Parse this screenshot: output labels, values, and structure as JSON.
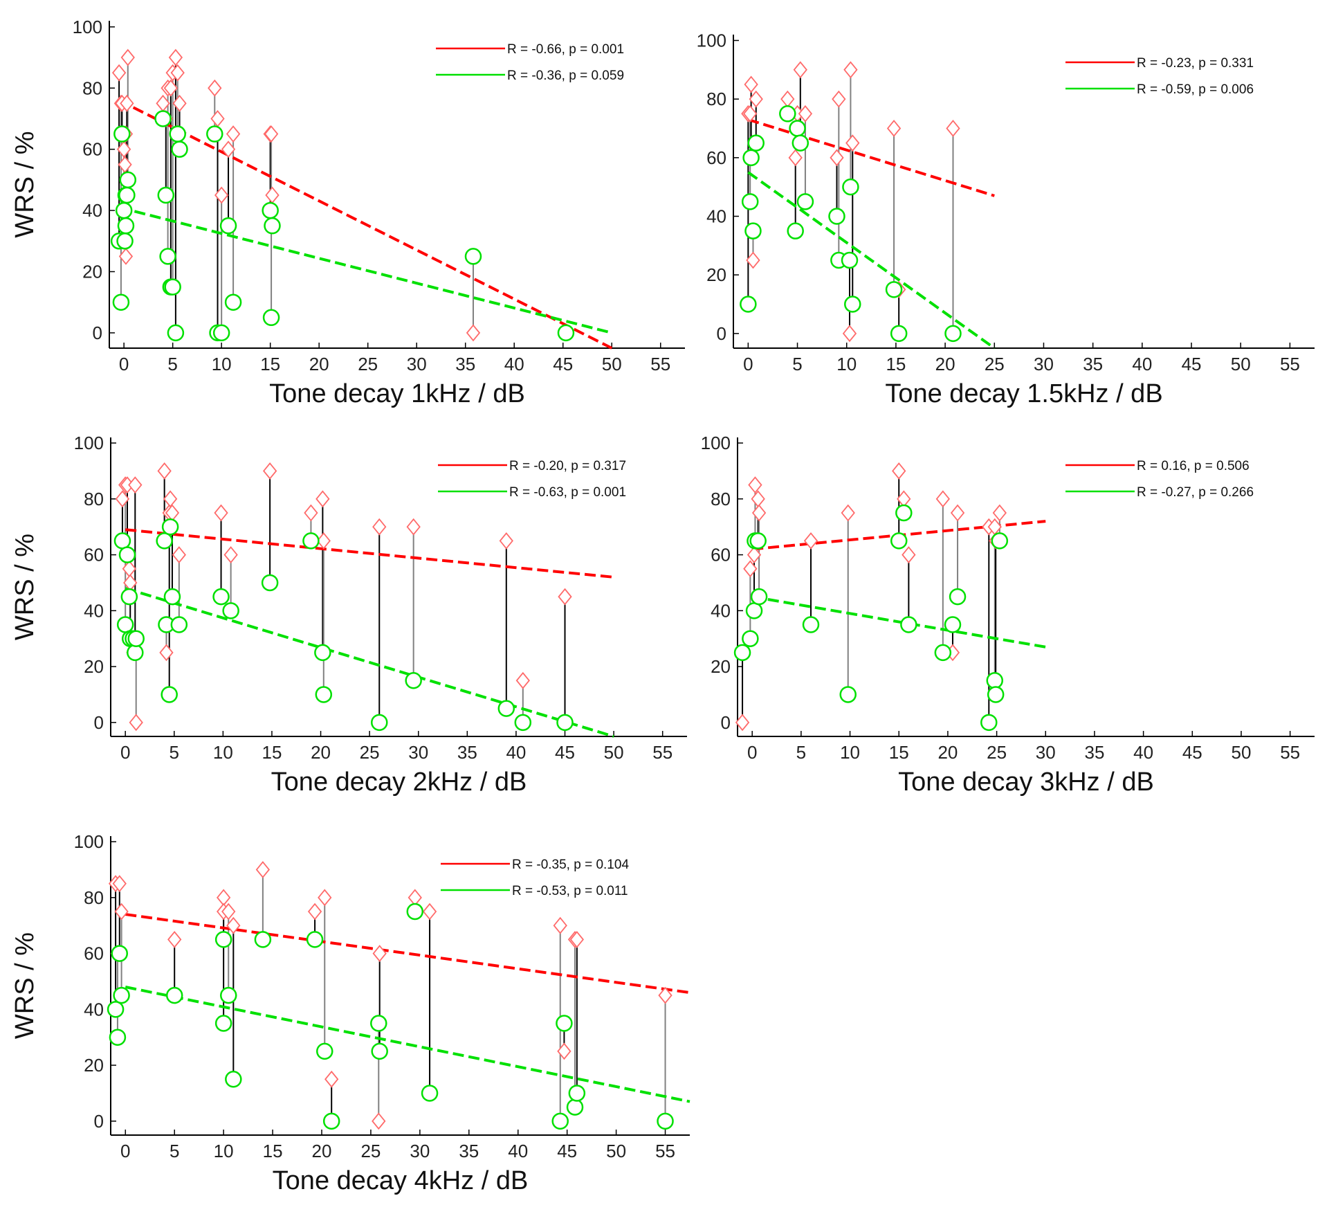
{
  "colors": {
    "red": "#ff0000",
    "green": "#00e000",
    "marker_red": "#ff6a6a",
    "marker_green": "#00e000",
    "stem_dark": "#000000",
    "stem_gray": "#808080"
  },
  "chart_data": [
    {
      "type": "scatter",
      "xlabel": "Tone decay 1kHz / dB",
      "ylabel": "WRS / %",
      "xlim": [
        -1.5,
        57.5
      ],
      "ylim": [
        -5,
        102
      ],
      "xticks": [
        0,
        5,
        10,
        15,
        20,
        25,
        30,
        35,
        40,
        45,
        50,
        55
      ],
      "yticks": [
        0,
        20,
        40,
        60,
        80,
        100
      ],
      "legend": {
        "placement": "top-right",
        "entries": [
          {
            "series": "red",
            "label": "R = -0.66, p = 0.001"
          },
          {
            "series": "green",
            "label": "R = -0.36, p = 0.059"
          }
        ]
      },
      "pairs": [
        {
          "x": -0.5,
          "red": 85,
          "green": 30
        },
        {
          "x": -0.3,
          "red": 75,
          "green": 10
        },
        {
          "x": -0.2,
          "red": 75,
          "green": 65
        },
        {
          "x": 0,
          "red": 60,
          "green": 40
        },
        {
          "x": 0.1,
          "red": 55,
          "green": 30
        },
        {
          "x": 0.2,
          "red": 65,
          "green": 35
        },
        {
          "x": 0.2,
          "red": 25,
          "green": 45
        },
        {
          "x": 0.4,
          "red": 90,
          "green": 50
        },
        {
          "x": 0.3,
          "red": 75,
          "green": 45
        },
        {
          "x": 4,
          "red": 75,
          "green": 70
        },
        {
          "x": 4.3,
          "red": 70,
          "green": 45
        },
        {
          "x": 4.5,
          "red": 80,
          "green": 25
        },
        {
          "x": 4.8,
          "red": 80,
          "green": 15
        },
        {
          "x": 5,
          "red": 85,
          "green": 15
        },
        {
          "x": 5.3,
          "red": 90,
          "green": 0
        },
        {
          "x": 5.5,
          "red": 85,
          "green": 65
        },
        {
          "x": 5.7,
          "red": 75,
          "green": 60
        },
        {
          "x": 9.3,
          "red": 80,
          "green": 65
        },
        {
          "x": 9.6,
          "red": 70,
          "green": 0
        },
        {
          "x": 10,
          "red": 45,
          "green": 0
        },
        {
          "x": 10.7,
          "red": 60,
          "green": 35
        },
        {
          "x": 11.2,
          "red": 65,
          "green": 10
        },
        {
          "x": 15,
          "red": 65,
          "green": 40
        },
        {
          "x": 15.1,
          "red": 65,
          "green": 5
        },
        {
          "x": 15.2,
          "red": 45,
          "green": 35
        },
        {
          "x": 35.8,
          "red": 0,
          "green": 25
        },
        {
          "x": 45.3,
          "red": 0,
          "green": 0
        }
      ],
      "fits": {
        "red": {
          "x": [
            -0.5,
            50
          ],
          "y": [
            76,
            -5
          ]
        },
        "green": {
          "x": [
            -0.5,
            50
          ],
          "y": [
            41,
            0
          ]
        }
      }
    },
    {
      "type": "scatter",
      "xlabel": "Tone decay 1.5kHz / dB",
      "ylabel": "",
      "xlim": [
        -1.5,
        57.5
      ],
      "ylim": [
        -5,
        102
      ],
      "xticks": [
        0,
        5,
        10,
        15,
        20,
        25,
        30,
        35,
        40,
        45,
        50,
        55
      ],
      "yticks": [
        0,
        20,
        40,
        60,
        80,
        100
      ],
      "legend": {
        "placement": "top-right",
        "entries": [
          {
            "series": "red",
            "label": "R = -0.23, p = 0.331"
          },
          {
            "series": "green",
            "label": "R = -0.59, p = 0.006"
          }
        ]
      },
      "pairs": [
        {
          "x": 0,
          "red": 75,
          "green": 10
        },
        {
          "x": 0.2,
          "red": 75,
          "green": 45
        },
        {
          "x": 0.3,
          "red": 85,
          "green": 60
        },
        {
          "x": 0.5,
          "red": 25,
          "green": 35
        },
        {
          "x": 0.8,
          "red": 80,
          "green": 65
        },
        {
          "x": 4,
          "red": 80,
          "green": 75
        },
        {
          "x": 4.8,
          "red": 60,
          "green": 35
        },
        {
          "x": 5,
          "red": 75,
          "green": 70
        },
        {
          "x": 5.3,
          "red": 90,
          "green": 65
        },
        {
          "x": 5.8,
          "red": 75,
          "green": 45
        },
        {
          "x": 9,
          "red": 60,
          "green": 40
        },
        {
          "x": 9.2,
          "red": 80,
          "green": 25
        },
        {
          "x": 10.3,
          "red": 0,
          "green": 25
        },
        {
          "x": 10.4,
          "red": 90,
          "green": 50
        },
        {
          "x": 10.6,
          "red": 65,
          "green": 10
        },
        {
          "x": 14.8,
          "red": 70,
          "green": 15
        },
        {
          "x": 15.3,
          "red": 15,
          "green": 0
        },
        {
          "x": 20.8,
          "red": 70,
          "green": 0
        }
      ],
      "fits": {
        "red": {
          "x": [
            0,
            25
          ],
          "y": [
            73,
            47
          ]
        },
        "green": {
          "x": [
            0,
            25
          ],
          "y": [
            55,
            -5
          ]
        }
      }
    },
    {
      "type": "scatter",
      "xlabel": "Tone decay 2kHz / dB",
      "ylabel": "WRS / %",
      "xlim": [
        -1.5,
        57.5
      ],
      "ylim": [
        -5,
        102
      ],
      "xticks": [
        0,
        5,
        10,
        15,
        20,
        25,
        30,
        35,
        40,
        45,
        50,
        55
      ],
      "yticks": [
        0,
        20,
        40,
        60,
        80,
        100
      ],
      "legend": {
        "placement": "top-right",
        "entries": [
          {
            "series": "red",
            "label": "R = -0.20, p = 0.317"
          },
          {
            "series": "green",
            "label": "R = -0.63, p = 0.001"
          }
        ]
      },
      "pairs": [
        {
          "x": -0.3,
          "red": 80,
          "green": 65
        },
        {
          "x": 0,
          "red": 85,
          "green": 35
        },
        {
          "x": 0.2,
          "red": 85,
          "green": 60
        },
        {
          "x": 0.4,
          "red": 55,
          "green": 45
        },
        {
          "x": 0.5,
          "red": 50,
          "green": 30
        },
        {
          "x": 0.8,
          "red": 25,
          "green": 30
        },
        {
          "x": 1,
          "red": 85,
          "green": 25
        },
        {
          "x": 1.1,
          "red": 0,
          "green": 30
        },
        {
          "x": 4,
          "red": 90,
          "green": 65
        },
        {
          "x": 4.2,
          "red": 25,
          "green": 35
        },
        {
          "x": 4.5,
          "red": 75,
          "green": 10
        },
        {
          "x": 4.6,
          "red": 80,
          "green": 70
        },
        {
          "x": 4.8,
          "red": 75,
          "green": 45
        },
        {
          "x": 5.5,
          "red": 60,
          "green": 35
        },
        {
          "x": 9.8,
          "red": 75,
          "green": 45
        },
        {
          "x": 10.8,
          "red": 60,
          "green": 40
        },
        {
          "x": 14.8,
          "red": 90,
          "green": 50
        },
        {
          "x": 19,
          "red": 75,
          "green": 65
        },
        {
          "x": 20.2,
          "red": 80,
          "green": 25
        },
        {
          "x": 20.3,
          "red": 65,
          "green": 10
        },
        {
          "x": 26,
          "red": 70,
          "green": 0
        },
        {
          "x": 29.5,
          "red": 70,
          "green": 15
        },
        {
          "x": 39,
          "red": 65,
          "green": 5
        },
        {
          "x": 40.7,
          "red": 15,
          "green": 0
        },
        {
          "x": 45,
          "red": 45,
          "green": 0
        }
      ],
      "fits": {
        "red": {
          "x": [
            0,
            50
          ],
          "y": [
            69,
            52
          ]
        },
        "green": {
          "x": [
            0,
            50
          ],
          "y": [
            48,
            -5
          ]
        }
      }
    },
    {
      "type": "scatter",
      "xlabel": "Tone decay 3kHz / dB",
      "ylabel": "",
      "xlim": [
        -1.5,
        57.5
      ],
      "ylim": [
        -5,
        102
      ],
      "xticks": [
        0,
        5,
        10,
        15,
        20,
        25,
        30,
        35,
        40,
        45,
        50,
        55
      ],
      "yticks": [
        0,
        20,
        40,
        60,
        80,
        100
      ],
      "legend": {
        "placement": "top-right",
        "entries": [
          {
            "series": "red",
            "label": "R = 0.16, p = 0.506"
          },
          {
            "series": "green",
            "label": "R = -0.27, p = 0.266"
          }
        ]
      },
      "pairs": [
        {
          "x": -1,
          "red": 0,
          "green": 25
        },
        {
          "x": -0.2,
          "red": 55,
          "green": 30
        },
        {
          "x": 0.2,
          "red": 60,
          "green": 40
        },
        {
          "x": 0.3,
          "red": 85,
          "green": 65
        },
        {
          "x": 0.6,
          "red": 80,
          "green": 65
        },
        {
          "x": 0.7,
          "red": 75,
          "green": 45
        },
        {
          "x": 6,
          "red": 65,
          "green": 35
        },
        {
          "x": 9.8,
          "red": 75,
          "green": 10
        },
        {
          "x": 15,
          "red": 90,
          "green": 65
        },
        {
          "x": 15.5,
          "red": 80,
          "green": 75
        },
        {
          "x": 16,
          "red": 60,
          "green": 35
        },
        {
          "x": 19.5,
          "red": 80,
          "green": 25
        },
        {
          "x": 20.5,
          "red": 25,
          "green": 35
        },
        {
          "x": 21,
          "red": 75,
          "green": 45
        },
        {
          "x": 24.2,
          "red": 70,
          "green": 0
        },
        {
          "x": 24.8,
          "red": 70,
          "green": 15
        },
        {
          "x": 24.9,
          "red": 65,
          "green": 10
        },
        {
          "x": 25.3,
          "red": 75,
          "green": 65
        }
      ],
      "fits": {
        "red": {
          "x": [
            0,
            30
          ],
          "y": [
            62,
            72
          ]
        },
        "green": {
          "x": [
            0,
            30
          ],
          "y": [
            45,
            27
          ]
        }
      }
    },
    {
      "type": "scatter",
      "xlabel": "Tone decay 4kHz / dB",
      "ylabel": "WRS / %",
      "xlim": [
        -1.5,
        57.5
      ],
      "ylim": [
        -5,
        102
      ],
      "xticks": [
        0,
        5,
        10,
        15,
        20,
        25,
        30,
        35,
        40,
        45,
        50,
        55
      ],
      "yticks": [
        0,
        20,
        40,
        60,
        80,
        100
      ],
      "legend": {
        "placement": "top-right",
        "entries": [
          {
            "series": "red",
            "label": "R = -0.35, p = 0.104"
          },
          {
            "series": "green",
            "label": "R = -0.53, p = 0.011"
          }
        ]
      },
      "pairs": [
        {
          "x": -1,
          "red": 85,
          "green": 40
        },
        {
          "x": -0.8,
          "red": 60,
          "green": 30
        },
        {
          "x": -0.6,
          "red": 85,
          "green": 60
        },
        {
          "x": -0.4,
          "red": 75,
          "green": 45
        },
        {
          "x": 5,
          "red": 65,
          "green": 45
        },
        {
          "x": 10,
          "red": 80,
          "green": 65
        },
        {
          "x": 10,
          "red": 75,
          "green": 35
        },
        {
          "x": 10.5,
          "red": 75,
          "green": 45
        },
        {
          "x": 11,
          "red": 70,
          "green": 15
        },
        {
          "x": 14,
          "red": 90,
          "green": 65
        },
        {
          "x": 19.3,
          "red": 75,
          "green": 65
        },
        {
          "x": 20.3,
          "red": 80,
          "green": 25
        },
        {
          "x": 21,
          "red": 15,
          "green": 0
        },
        {
          "x": 25.8,
          "red": 0,
          "green": 35
        },
        {
          "x": 25.9,
          "red": 60,
          "green": 25
        },
        {
          "x": 29.5,
          "red": 80,
          "green": 75
        },
        {
          "x": 31,
          "red": 75,
          "green": 10
        },
        {
          "x": 44.3,
          "red": 70,
          "green": 0
        },
        {
          "x": 44.7,
          "red": 25,
          "green": 35
        },
        {
          "x": 45.8,
          "red": 65,
          "green": 5
        },
        {
          "x": 46,
          "red": 65,
          "green": 10
        },
        {
          "x": 55,
          "red": 45,
          "green": 0
        }
      ],
      "fits": {
        "red": {
          "x": [
            0,
            57.5
          ],
          "y": [
            74,
            46
          ]
        },
        "green": {
          "x": [
            0,
            57.5
          ],
          "y": [
            48,
            7
          ]
        }
      }
    }
  ]
}
